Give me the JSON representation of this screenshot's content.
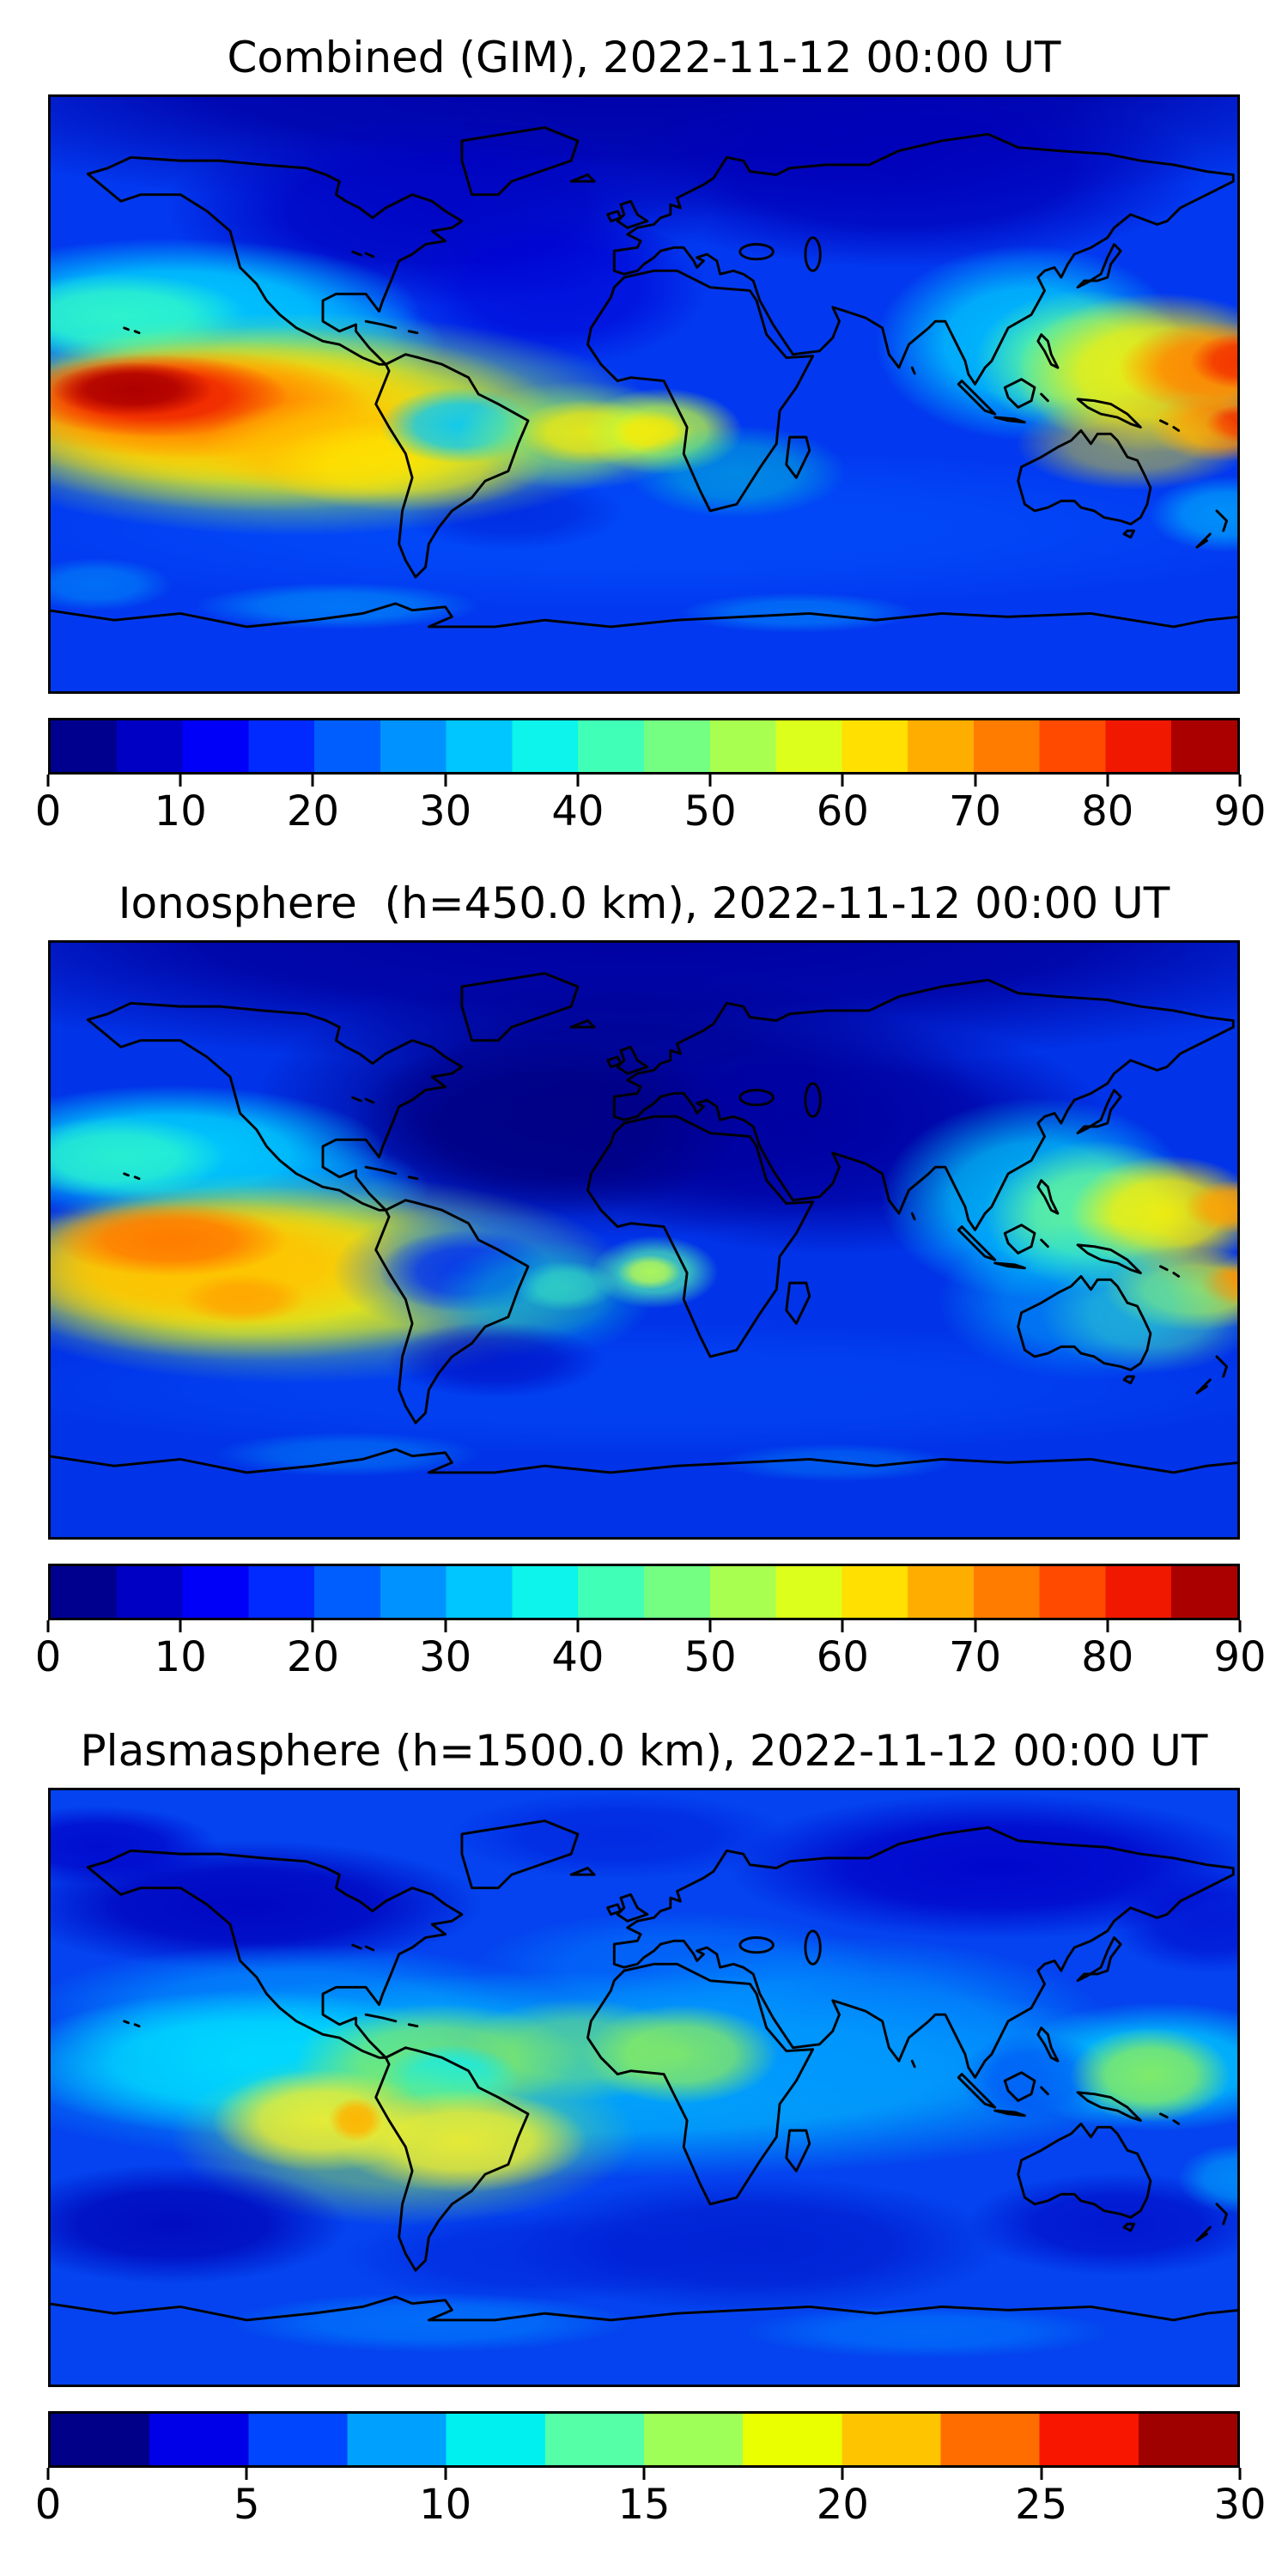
{
  "page": {
    "background": "#ffffff"
  },
  "panels": [
    {
      "id": "combined",
      "title": "Combined (GIM), 2022-11-12 00:00 UT",
      "colorbar": {
        "min": 0,
        "max": 90,
        "tick_labels": [
          "0",
          "10",
          "20",
          "30",
          "40",
          "50",
          "60",
          "70",
          "80",
          "90"
        ],
        "segment_colors": [
          "#00008f",
          "#0000c4",
          "#0000f9",
          "#002aff",
          "#005eff",
          "#0092ff",
          "#00c6ff",
          "#0cf4eb",
          "#40ffb7",
          "#74ff83",
          "#a8ff4f",
          "#dcff1b",
          "#ffe000",
          "#ffae00",
          "#ff7c00",
          "#ff4a00",
          "#f11800",
          "#ab0000"
        ]
      },
      "field": {
        "base": "#0239f0",
        "blobs": [
          [
            720,
            -20,
            990,
            170,
            "#0000a8",
            1
          ],
          [
            470,
            140,
            330,
            115,
            "#0000c0",
            0.9
          ],
          [
            1030,
            95,
            370,
            115,
            "#0000ba",
            0.9
          ],
          [
            610,
            235,
            190,
            95,
            "#0000d5",
            0.7
          ],
          [
            150,
            262,
            300,
            88,
            "#00d2ff",
            0.95
          ],
          [
            85,
            268,
            155,
            52,
            "#39ffc0",
            0.8
          ],
          [
            330,
            302,
            150,
            62,
            "#00bfff",
            0.65
          ],
          [
            720,
            525,
            830,
            95,
            "#0055ff",
            0.5
          ],
          [
            560,
            505,
            135,
            45,
            "#0018d0",
            0.5
          ],
          [
            300,
            398,
            440,
            135,
            "#b4ff3c",
            0.75
          ],
          [
            255,
            392,
            365,
            112,
            "#ffef00",
            0.9
          ],
          [
            205,
            385,
            295,
            88,
            "#ffc000",
            0.95
          ],
          [
            162,
            374,
            228,
            66,
            "#ff8000",
            0.95
          ],
          [
            128,
            364,
            162,
            50,
            "#ee1c00",
            0.95
          ],
          [
            102,
            356,
            98,
            33,
            "#ad0000",
            1
          ],
          [
            350,
            428,
            165,
            62,
            "#ffc000",
            0.8
          ],
          [
            432,
            448,
            172,
            56,
            "#ffef00",
            0.65
          ],
          [
            497,
            400,
            96,
            46,
            "#00c8ff",
            0.9
          ],
          [
            640,
            412,
            145,
            66,
            "#9dff57",
            0.55
          ],
          [
            652,
            408,
            88,
            40,
            "#ffef00",
            0.8
          ],
          [
            742,
            407,
            97,
            52,
            "#c3ff38",
            0.85
          ],
          [
            728,
            408,
            50,
            27,
            "#ffe900",
            0.8
          ],
          [
            832,
            456,
            132,
            56,
            "#00e0cf",
            0.45
          ],
          [
            1185,
            300,
            185,
            118,
            "#00d5ff",
            0.85
          ],
          [
            1252,
            322,
            132,
            86,
            "#6cff8e",
            0.8
          ],
          [
            1342,
            336,
            172,
            96,
            "#ffef00",
            0.9
          ],
          [
            1410,
            330,
            117,
            56,
            "#ff8400",
            0.95
          ],
          [
            1442,
            322,
            62,
            34,
            "#f33000",
            0.95
          ],
          [
            1417,
            402,
            86,
            42,
            "#ff8400",
            0.9
          ],
          [
            1442,
            398,
            44,
            23,
            "#f33000",
            0.9
          ],
          [
            1312,
            422,
            142,
            56,
            "#ffe900",
            0.5
          ],
          [
            1422,
            507,
            92,
            46,
            "#00d5ff",
            0.55
          ],
          [
            350,
            618,
            172,
            28,
            "#00bfff",
            0.45
          ],
          [
            905,
            626,
            142,
            24,
            "#00bfff",
            0.38
          ],
          [
            58,
            592,
            92,
            32,
            "#00bfff",
            0.4
          ]
        ]
      }
    },
    {
      "id": "ionosphere",
      "title": "Ionosphere  (h=450.0 km), 2022-11-12 00:00 UT",
      "colorbar": {
        "min": 0,
        "max": 90,
        "tick_labels": [
          "0",
          "10",
          "20",
          "30",
          "40",
          "50",
          "60",
          "70",
          "80",
          "90"
        ],
        "segment_colors": [
          "#00008f",
          "#0000c4",
          "#0000f9",
          "#002aff",
          "#005eff",
          "#0092ff",
          "#00c6ff",
          "#0cf4eb",
          "#40ffb7",
          "#74ff83",
          "#a8ff4f",
          "#dcff1b",
          "#ffe000",
          "#ffae00",
          "#ff7c00",
          "#ff4a00",
          "#f11800",
          "#ab0000"
        ]
      },
      "field": {
        "base": "#0133e8",
        "blobs": [
          [
            720,
            -10,
            990,
            165,
            "#0000a0",
            1
          ],
          [
            690,
            195,
            440,
            165,
            "#000090",
            0.95
          ],
          [
            950,
            235,
            340,
            145,
            "#0000a2",
            0.9
          ],
          [
            600,
            225,
            235,
            112,
            "#000082",
            0.85
          ],
          [
            148,
            257,
            262,
            82,
            "#00e0ff",
            0.9
          ],
          [
            82,
            263,
            132,
            50,
            "#39ffc0",
            0.7
          ],
          [
            318,
            300,
            142,
            56,
            "#00bfff",
            0.5
          ],
          [
            300,
            408,
            405,
            128,
            "#b4ff3c",
            0.7
          ],
          [
            248,
            402,
            332,
            106,
            "#ffef00",
            0.9
          ],
          [
            188,
            392,
            252,
            82,
            "#ffc000",
            0.95
          ],
          [
            148,
            362,
            142,
            44,
            "#ff7800",
            0.95
          ],
          [
            235,
            433,
            76,
            30,
            "#ffa000",
            0.8
          ],
          [
            505,
            400,
            162,
            76,
            "#0063ff",
            0.6
          ],
          [
            505,
            400,
            106,
            50,
            "#0030f0",
            0.9
          ],
          [
            598,
            432,
            132,
            72,
            "#00e0d0",
            0.4
          ],
          [
            625,
            418,
            62,
            30,
            "#45ffbe",
            0.5
          ],
          [
            733,
            401,
            77,
            44,
            "#54ffae",
            0.75
          ],
          [
            727,
            401,
            38,
            21,
            "#c8ff44",
            0.8
          ],
          [
            1195,
            312,
            188,
            122,
            "#00d5ff",
            0.8
          ],
          [
            1268,
            332,
            136,
            90,
            "#70ff90",
            0.85
          ],
          [
            1352,
            330,
            117,
            70,
            "#ffef00",
            0.9
          ],
          [
            1430,
            322,
            57,
            32,
            "#ffa000",
            0.9
          ],
          [
            1387,
            422,
            112,
            50,
            "#ffef00",
            0.8
          ],
          [
            1437,
            416,
            46,
            25,
            "#ff9000",
            0.9
          ],
          [
            1332,
            452,
            132,
            72,
            "#70ff90",
            0.45
          ],
          [
            1256,
            436,
            182,
            96,
            "#00d5ff",
            0.45
          ],
          [
            720,
            542,
            830,
            82,
            "#0055ff",
            0.4
          ],
          [
            540,
            507,
            132,
            46,
            "#0000b8",
            0.55
          ],
          [
            362,
            621,
            162,
            27,
            "#00aaff",
            0.38
          ],
          [
            952,
            631,
            142,
            23,
            "#00aaff",
            0.33
          ]
        ]
      }
    },
    {
      "id": "plasmasphere",
      "title": "Plasmasphere (h=1500.0 km), 2022-11-12 00:00 UT",
      "colorbar": {
        "min": 0,
        "max": 30,
        "tick_labels": [
          "0",
          "5",
          "10",
          "15",
          "20",
          "25",
          "30"
        ],
        "segment_colors": [
          "#000089",
          "#0000e8",
          "#0046ff",
          "#00a0ff",
          "#00f0f0",
          "#55ffa8",
          "#9dff57",
          "#eaff00",
          "#ffc400",
          "#ff6d00",
          "#f81600",
          "#9f0000"
        ]
      },
      "field": {
        "base": "#0443ef",
        "blobs": [
          [
            240,
            142,
            285,
            78,
            "#0000bd",
            0.9
          ],
          [
            60,
            70,
            145,
            48,
            "#0000c8",
            0.8
          ],
          [
            1145,
            95,
            325,
            88,
            "#0000c8",
            0.9
          ],
          [
            1405,
            162,
            122,
            62,
            "#0000c8",
            0.6
          ],
          [
            690,
            58,
            205,
            52,
            "#0018d8",
            0.55
          ],
          [
            300,
            267,
            325,
            78,
            "#0096ff",
            0.75
          ],
          [
            760,
            217,
            245,
            68,
            "#0080ff",
            0.55
          ],
          [
            650,
            347,
            765,
            125,
            "#00c8ff",
            0.75
          ],
          [
            240,
            332,
            285,
            88,
            "#00e2ff",
            0.85
          ],
          [
            1342,
            337,
            192,
            78,
            "#00d2ff",
            0.85
          ],
          [
            960,
            292,
            325,
            112,
            "#0096ff",
            0.75
          ],
          [
            470,
            327,
            172,
            66,
            "#8cf05a",
            0.75
          ],
          [
            640,
            317,
            142,
            62,
            "#8cf05a",
            0.55
          ],
          [
            765,
            322,
            117,
            60,
            "#8cf05a",
            0.85
          ],
          [
            485,
            352,
            86,
            42,
            "#00eaff",
            0.9
          ],
          [
            430,
            422,
            282,
            107,
            "#9cf048",
            0.55
          ],
          [
            330,
            402,
            132,
            62,
            "#f5ef2c",
            0.9
          ],
          [
            500,
            427,
            152,
            62,
            "#f5ef2c",
            0.9
          ],
          [
            372,
            401,
            33,
            27,
            "#ffb300",
            0.95
          ],
          [
            1192,
            352,
            92,
            57,
            "#0055f5",
            0.75
          ],
          [
            1332,
            347,
            97,
            57,
            "#8cf05a",
            0.9
          ],
          [
            150,
            527,
            212,
            72,
            "#0000b4",
            0.8
          ],
          [
            852,
            552,
            302,
            82,
            "#0017cd",
            0.75
          ],
          [
            1292,
            527,
            182,
            62,
            "#0000c0",
            0.65
          ],
          [
            582,
            567,
            222,
            57,
            "#0020d8",
            0.55
          ],
          [
            462,
            646,
            242,
            36,
            "#0082ff",
            0.65
          ],
          [
            1062,
            657,
            222,
            32,
            "#0082ff",
            0.55
          ],
          [
            1437,
            472,
            72,
            42,
            "#00c8ff",
            0.5
          ]
        ]
      }
    }
  ],
  "chart_data": [
    {
      "type": "heatmap",
      "subtype": "filled-contour global TEC map, equirectangular projection with coastlines",
      "title": "Combined (GIM), 2022-11-12 00:00 UT",
      "value_range": [
        0,
        90
      ],
      "colorbar_ticks": [
        0,
        10,
        20,
        30,
        40,
        50,
        60,
        70,
        80,
        90
      ],
      "contour_interval": 5,
      "colormap": "jet (18 discrete bins)",
      "peak_value_estimate": 88,
      "peak_locations": [
        "equatorial eastern Pacific west of South America (dark red, 85-90)",
        "western equatorial Pacific near date line (orange-red, 75-85)"
      ],
      "low_value_estimate": 5,
      "low_locations": [
        "Arctic and North Atlantic high latitudes (5-15)",
        "local minimum over central Brazil (25-30)"
      ]
    },
    {
      "type": "heatmap",
      "subtype": "filled-contour global TEC map, equirectangular projection with coastlines",
      "title": "Ionosphere  (h=450.0 km), 2022-11-12 00:00 UT",
      "value_range": [
        0,
        90
      ],
      "colorbar_ticks": [
        0,
        10,
        20,
        30,
        40,
        50,
        60,
        70,
        80,
        90
      ],
      "contour_interval": 5,
      "colormap": "jet (18 discrete bins)",
      "peak_value_estimate": 75,
      "peak_locations": [
        "equatorial eastern Pacific (orange, 70-75)",
        "western Pacific near date line (yellow-orange, 65-70)"
      ],
      "low_value_estimate": 5,
      "low_locations": [
        "broad dark-navy minimum over North Atlantic, Europe, Middle East and India (0-10)",
        "local minimum over central Brazil (10-15)"
      ]
    },
    {
      "type": "heatmap",
      "subtype": "filled-contour global TEC map, equirectangular projection with coastlines",
      "title": "Plasmasphere (h=1500.0 km), 2022-11-12 00:00 UT",
      "value_range": [
        0,
        30
      ],
      "colorbar_ticks": [
        0,
        5,
        10,
        15,
        20,
        25,
        30
      ],
      "contour_interval": 2.5,
      "colormap": "jet (12 discrete bins)",
      "peak_value_estimate": 22,
      "peak_locations": [
        "small orange maximum west of Peru (20-22.5)",
        "yellow band over Brazil and adjacent Pacific (17.5-20)"
      ],
      "low_value_estimate": 2,
      "low_locations": [
        "high-latitude navy patches in Arctic and Southern Ocean (0-5)"
      ]
    }
  ]
}
